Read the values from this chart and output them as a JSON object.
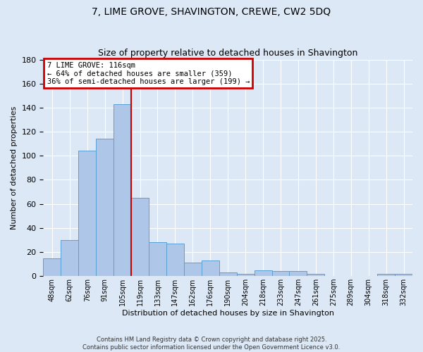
{
  "title": "7, LIME GROVE, SHAVINGTON, CREWE, CW2 5DQ",
  "subtitle": "Size of property relative to detached houses in Shavington",
  "xlabel": "Distribution of detached houses by size in Shavington",
  "ylabel": "Number of detached properties",
  "bar_labels": [
    "48sqm",
    "62sqm",
    "76sqm",
    "91sqm",
    "105sqm",
    "119sqm",
    "133sqm",
    "147sqm",
    "162sqm",
    "176sqm",
    "190sqm",
    "204sqm",
    "218sqm",
    "233sqm",
    "247sqm",
    "261sqm",
    "275sqm",
    "289sqm",
    "304sqm",
    "318sqm",
    "332sqm"
  ],
  "bar_values": [
    15,
    30,
    104,
    114,
    143,
    65,
    28,
    27,
    11,
    13,
    3,
    2,
    5,
    4,
    4,
    2,
    0,
    0,
    0,
    2,
    2
  ],
  "bar_color": "#aec6e8",
  "bar_edge_color": "#5a9fd4",
  "vline_index": 5,
  "annotation_line1": "7 LIME GROVE: 116sqm",
  "annotation_line2": "← 64% of detached houses are smaller (359)",
  "annotation_line3": "36% of semi-detached houses are larger (199) →",
  "annotation_box_color": "#ffffff",
  "annotation_box_edge": "#cc0000",
  "vline_color": "#cc0000",
  "ylim": [
    0,
    180
  ],
  "yticks": [
    0,
    20,
    40,
    60,
    80,
    100,
    120,
    140,
    160,
    180
  ],
  "footer_line1": "Contains HM Land Registry data © Crown copyright and database right 2025.",
  "footer_line2": "Contains public sector information licensed under the Open Government Licence v3.0.",
  "bg_color": "#dce8f5",
  "plot_bg_color": "#dce8f5"
}
